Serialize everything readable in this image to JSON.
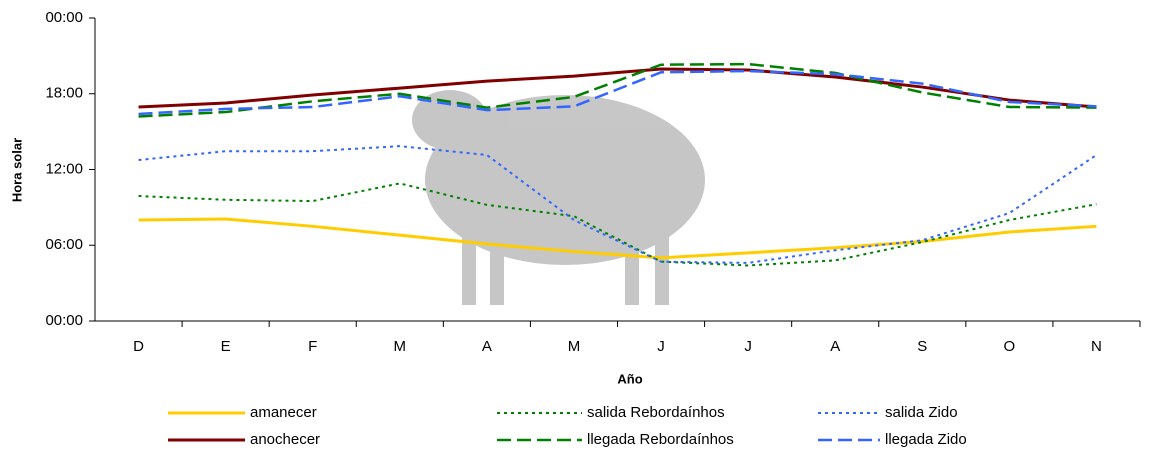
{
  "chart_data": {
    "type": "line",
    "y_label": "Hora solar",
    "x_label": "Año",
    "categories": [
      "D",
      "E",
      "F",
      "M",
      "A",
      "M",
      "J",
      "J",
      "A",
      "S",
      "O",
      "N"
    ],
    "ylim": [
      0,
      24
    ],
    "yticks": [
      {
        "value": 0,
        "label": "00:00"
      },
      {
        "value": 6,
        "label": "06:00"
      },
      {
        "value": 12,
        "label": "12:00"
      },
      {
        "value": 18,
        "label": "18:00"
      },
      {
        "value": 24,
        "label": "00:00"
      }
    ],
    "grid": false,
    "series": [
      {
        "name": "amanecer",
        "color": "#ffcc00",
        "dash": "solid",
        "values": [
          8.0,
          8.08,
          7.5,
          6.8,
          6.1,
          5.5,
          5.0,
          5.4,
          5.8,
          6.3,
          7.05,
          7.5
        ]
      },
      {
        "name": "anochecer",
        "color": "#800000",
        "dash": "solid",
        "values": [
          16.95,
          17.27,
          17.9,
          18.45,
          19.0,
          19.4,
          19.96,
          19.88,
          19.33,
          18.53,
          17.5,
          16.95
        ]
      },
      {
        "name": "salida Rebordaínhos",
        "color": "#008000",
        "dash": "dotted",
        "values": [
          9.9,
          9.6,
          9.5,
          10.9,
          9.2,
          8.3,
          4.7,
          4.4,
          4.8,
          6.25,
          8.0,
          9.25
        ]
      },
      {
        "name": "llegada Rebordaínhos",
        "color": "#008000",
        "dash": "dashed",
        "values": [
          16.2,
          16.55,
          17.4,
          18.0,
          16.9,
          17.75,
          20.3,
          20.35,
          19.65,
          18.1,
          16.95,
          16.9
        ]
      },
      {
        "name": "salida Zido",
        "color": "#3366ff",
        "dash": "dotted",
        "values": [
          12.75,
          13.45,
          13.45,
          13.85,
          13.15,
          8.0,
          4.7,
          4.6,
          5.6,
          6.4,
          8.55,
          13.15
        ]
      },
      {
        "name": "llegada Zido",
        "color": "#3366ff",
        "dash": "dashed",
        "values": [
          16.4,
          16.8,
          16.95,
          17.8,
          16.7,
          17.0,
          19.7,
          19.8,
          19.55,
          18.8,
          17.35,
          17.0
        ]
      }
    ]
  }
}
